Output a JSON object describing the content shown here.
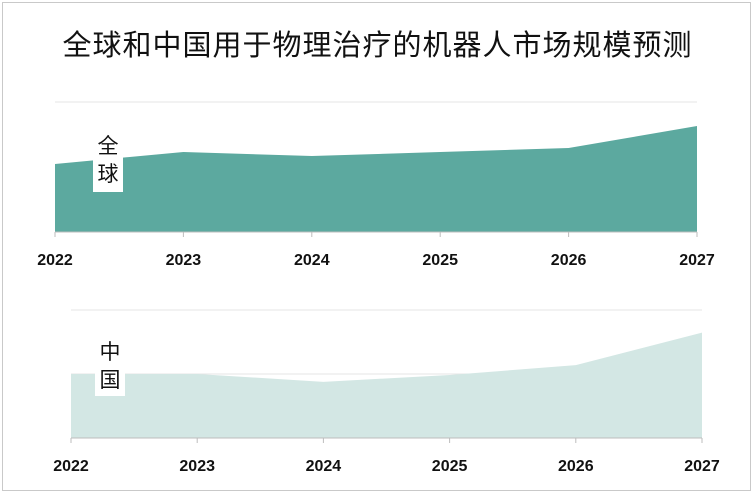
{
  "title": "全球和中国用于物理治疗的机器人市场规模预测",
  "colors": {
    "global": "#5ca99f",
    "china": "#d3e7e4",
    "grid": "#e6e6e6",
    "axis": "#bdbdbd"
  },
  "chart_data": [
    {
      "type": "area",
      "series": [
        {
          "name": "全球",
          "x": [
            "2022",
            "2023",
            "2024",
            "2025",
            "2026",
            "2027"
          ],
          "values": [
            68,
            80,
            76,
            80,
            84,
            106
          ]
        }
      ],
      "ylim": [
        0,
        130
      ],
      "grid": true,
      "legend": "inline-left"
    },
    {
      "type": "area",
      "series": [
        {
          "name": "中国",
          "x": [
            "2022",
            "2023",
            "2024",
            "2025",
            "2026",
            "2027"
          ],
          "values": [
            65,
            65,
            57,
            64,
            74,
            107
          ]
        }
      ],
      "ylim": [
        0,
        130
      ],
      "grid": true,
      "legend": "inline-left"
    }
  ]
}
